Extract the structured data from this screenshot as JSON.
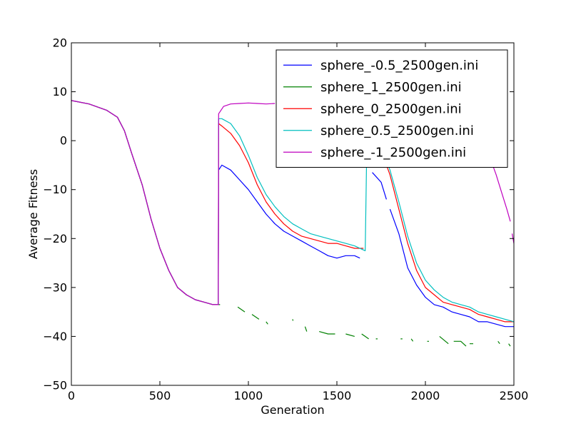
{
  "chart_data": {
    "type": "line",
    "title": "",
    "xlabel": "Generation",
    "ylabel": "Average Fitness",
    "xlim": [
      0,
      2500
    ],
    "ylim": [
      -50,
      20
    ],
    "xticks": [
      0,
      500,
      1000,
      1500,
      2000,
      2500
    ],
    "yticks": [
      -50,
      -40,
      -30,
      -20,
      -10,
      0,
      10,
      20
    ],
    "grid": false,
    "legend_position": "top-right",
    "series": [
      {
        "name": "sphere_-0.5_2500gen.ini",
        "color": "#0000ff",
        "points": [
          [
            0,
            8.2
          ],
          [
            100,
            7.5
          ],
          [
            200,
            6.2
          ],
          [
            260,
            4.8
          ],
          [
            300,
            2.0
          ],
          [
            340,
            -2.5
          ],
          [
            400,
            -9
          ],
          [
            450,
            -16
          ],
          [
            500,
            -22
          ],
          [
            550,
            -26.5
          ],
          [
            600,
            -30
          ],
          [
            650,
            -31.5
          ],
          [
            700,
            -32.5
          ],
          [
            750,
            -33
          ],
          [
            800,
            -33.5
          ],
          [
            830,
            -33.5
          ],
          [
            832,
            -6
          ],
          [
            850,
            -5
          ],
          [
            900,
            -6
          ],
          [
            950,
            -8
          ],
          [
            1000,
            -10
          ],
          [
            1050,
            -12.5
          ],
          [
            1100,
            -15
          ],
          [
            1150,
            -17
          ],
          [
            1200,
            -18.5
          ],
          [
            1250,
            -19.5
          ],
          [
            1300,
            -20.5
          ],
          [
            1350,
            -21.5
          ],
          [
            1400,
            -22.5
          ],
          [
            1450,
            -23.5
          ],
          [
            1500,
            -24
          ],
          [
            1550,
            -23.5
          ],
          [
            1600,
            -23.5
          ],
          [
            1630,
            -24
          ],
          null,
          [
            1700,
            -6.5
          ],
          [
            1750,
            -8.5
          ],
          [
            1780,
            -12
          ],
          null,
          [
            1800,
            -14
          ],
          [
            1850,
            -19
          ],
          [
            1900,
            -26
          ],
          [
            1950,
            -29.5
          ],
          [
            2000,
            -32
          ],
          [
            2050,
            -33.5
          ],
          [
            2100,
            -34
          ],
          [
            2150,
            -35
          ],
          [
            2200,
            -35.5
          ],
          [
            2250,
            -36
          ],
          [
            2300,
            -37
          ],
          [
            2350,
            -37
          ],
          [
            2400,
            -37.5
          ],
          [
            2450,
            -38
          ],
          [
            2500,
            -38
          ]
        ]
      },
      {
        "name": "sphere_1_2500gen.ini",
        "color": "#008000",
        "points": [
          [
            0,
            8.2
          ],
          [
            100,
            7.5
          ],
          [
            200,
            6.2
          ],
          [
            260,
            4.8
          ],
          [
            300,
            2.0
          ],
          [
            340,
            -2.5
          ],
          [
            400,
            -9
          ],
          [
            450,
            -16
          ],
          [
            500,
            -22
          ],
          [
            550,
            -26.5
          ],
          [
            600,
            -30
          ],
          [
            650,
            -31.5
          ],
          [
            700,
            -32.5
          ],
          [
            750,
            -33
          ],
          [
            800,
            -33.5
          ],
          [
            840,
            -33.5
          ],
          null,
          [
            940,
            -34
          ],
          [
            980,
            -35
          ],
          null,
          [
            1020,
            -35.5
          ],
          [
            1060,
            -36.5
          ],
          null,
          [
            1100,
            -37
          ],
          [
            1110,
            -37.5
          ],
          null,
          [
            1250,
            -36.5
          ],
          [
            1252,
            -36.8
          ],
          null,
          [
            1320,
            -38
          ],
          [
            1330,
            -39
          ],
          null,
          [
            1400,
            -39
          ],
          [
            1450,
            -39.5
          ],
          [
            1490,
            -39.5
          ],
          null,
          [
            1550,
            -39.5
          ],
          [
            1600,
            -40
          ],
          null,
          [
            1640,
            -39.5
          ],
          [
            1680,
            -40.5
          ],
          null,
          [
            1720,
            -40.5
          ],
          [
            1730,
            -40.5
          ],
          null,
          [
            1860,
            -40.5
          ],
          [
            1870,
            -40.5
          ],
          null,
          [
            1920,
            -40.5
          ],
          [
            1930,
            -41
          ],
          null,
          [
            2010,
            -41
          ],
          [
            2020,
            -41
          ],
          null,
          [
            2080,
            -40
          ],
          [
            2130,
            -41.5
          ],
          null,
          [
            2160,
            -41
          ],
          [
            2200,
            -41
          ],
          [
            2230,
            -42
          ],
          null,
          [
            2250,
            -41.5
          ],
          [
            2270,
            -41.5
          ],
          null,
          [
            2410,
            -41
          ],
          [
            2420,
            -41.5
          ],
          null,
          [
            2470,
            -41.5
          ],
          [
            2480,
            -42
          ]
        ]
      },
      {
        "name": "sphere_0_2500gen.ini",
        "color": "#ff0000",
        "points": [
          [
            0,
            8.2
          ],
          [
            100,
            7.5
          ],
          [
            200,
            6.2
          ],
          [
            260,
            4.8
          ],
          [
            300,
            2.0
          ],
          [
            340,
            -2.5
          ],
          [
            400,
            -9
          ],
          [
            450,
            -16
          ],
          [
            500,
            -22
          ],
          [
            550,
            -26.5
          ],
          [
            600,
            -30
          ],
          [
            650,
            -31.5
          ],
          [
            700,
            -32.5
          ],
          [
            750,
            -33
          ],
          [
            800,
            -33.5
          ],
          [
            830,
            -33.5
          ],
          [
            832,
            3.5
          ],
          [
            850,
            3
          ],
          [
            900,
            1.5
          ],
          [
            950,
            -1
          ],
          [
            1000,
            -4.5
          ],
          [
            1050,
            -9
          ],
          [
            1100,
            -12.5
          ],
          [
            1150,
            -15
          ],
          [
            1200,
            -17
          ],
          [
            1250,
            -18.5
          ],
          [
            1300,
            -19.5
          ],
          [
            1350,
            -20
          ],
          [
            1400,
            -20.5
          ],
          [
            1450,
            -21
          ],
          [
            1500,
            -21
          ],
          [
            1550,
            -21.5
          ],
          [
            1600,
            -22
          ],
          [
            1650,
            -22
          ],
          null,
          [
            1770,
            -4
          ],
          [
            1800,
            -7
          ],
          [
            1850,
            -14
          ],
          [
            1900,
            -21
          ],
          [
            1950,
            -26.5
          ],
          [
            2000,
            -30
          ],
          [
            2050,
            -31.5
          ],
          [
            2100,
            -33
          ],
          [
            2150,
            -33.5
          ],
          [
            2200,
            -34
          ],
          [
            2250,
            -34.5
          ],
          [
            2300,
            -35.5
          ],
          [
            2350,
            -36
          ],
          [
            2400,
            -36.5
          ],
          [
            2450,
            -37
          ],
          [
            2500,
            -37
          ]
        ]
      },
      {
        "name": "sphere_0.5_2500gen.ini",
        "color": "#00bfbf",
        "points": [
          [
            0,
            8.2
          ],
          [
            100,
            7.5
          ],
          [
            200,
            6.2
          ],
          [
            260,
            4.8
          ],
          [
            300,
            2.0
          ],
          [
            340,
            -2.5
          ],
          [
            400,
            -9
          ],
          [
            450,
            -16
          ],
          [
            500,
            -22
          ],
          [
            550,
            -26.5
          ],
          [
            600,
            -30
          ],
          [
            650,
            -31.5
          ],
          [
            700,
            -32.5
          ],
          [
            750,
            -33
          ],
          [
            800,
            -33.5
          ],
          [
            830,
            -33.5
          ],
          [
            832,
            4.5
          ],
          [
            850,
            4.5
          ],
          [
            900,
            3.5
          ],
          [
            950,
            1
          ],
          [
            1000,
            -3
          ],
          [
            1050,
            -7.5
          ],
          [
            1100,
            -11
          ],
          [
            1150,
            -13.5
          ],
          [
            1200,
            -15.5
          ],
          [
            1250,
            -17
          ],
          [
            1300,
            -18
          ],
          [
            1350,
            -19
          ],
          [
            1400,
            -19.5
          ],
          [
            1450,
            -20
          ],
          [
            1500,
            -20.5
          ],
          [
            1550,
            -21
          ],
          [
            1600,
            -21.5
          ],
          [
            1660,
            -22.5
          ],
          [
            1668,
            -3
          ],
          null,
          [
            1770,
            -3
          ],
          [
            1800,
            -6
          ],
          [
            1850,
            -12.5
          ],
          [
            1900,
            -19.5
          ],
          [
            1950,
            -25
          ],
          [
            2000,
            -28.5
          ],
          [
            2050,
            -30.5
          ],
          [
            2100,
            -32
          ],
          [
            2150,
            -33
          ],
          [
            2200,
            -33.5
          ],
          [
            2250,
            -34
          ],
          [
            2300,
            -35
          ],
          [
            2350,
            -35.5
          ],
          [
            2400,
            -36
          ],
          [
            2450,
            -36.5
          ],
          [
            2500,
            -37
          ]
        ]
      },
      {
        "name": "sphere_-1_2500gen.ini",
        "color": "#bf00bf",
        "points": [
          [
            0,
            8.2
          ],
          [
            100,
            7.5
          ],
          [
            200,
            6.2
          ],
          [
            260,
            4.8
          ],
          [
            300,
            2.0
          ],
          [
            340,
            -2.5
          ],
          [
            400,
            -9
          ],
          [
            450,
            -16
          ],
          [
            500,
            -22
          ],
          [
            550,
            -26.5
          ],
          [
            600,
            -30
          ],
          [
            650,
            -31.5
          ],
          [
            700,
            -32.5
          ],
          [
            750,
            -33
          ],
          [
            800,
            -33.5
          ],
          [
            830,
            -33.5
          ],
          [
            832,
            5.5
          ],
          [
            860,
            7
          ],
          [
            900,
            7.5
          ],
          [
            950,
            7.6
          ],
          [
            1000,
            7.7
          ],
          [
            1050,
            7.6
          ],
          [
            1100,
            7.5
          ],
          [
            1150,
            7.6
          ],
          null,
          [
            2360,
            -3
          ],
          [
            2400,
            -7
          ],
          [
            2430,
            -10.5
          ],
          [
            2460,
            -14
          ],
          [
            2480,
            -16.5
          ],
          null,
          [
            2490,
            -19
          ],
          [
            2500,
            -21
          ]
        ]
      }
    ],
    "legend": [
      "sphere_-0.5_2500gen.ini",
      "sphere_1_2500gen.ini",
      "sphere_0_2500gen.ini",
      "sphere_0.5_2500gen.ini",
      "sphere_-1_2500gen.ini"
    ]
  }
}
